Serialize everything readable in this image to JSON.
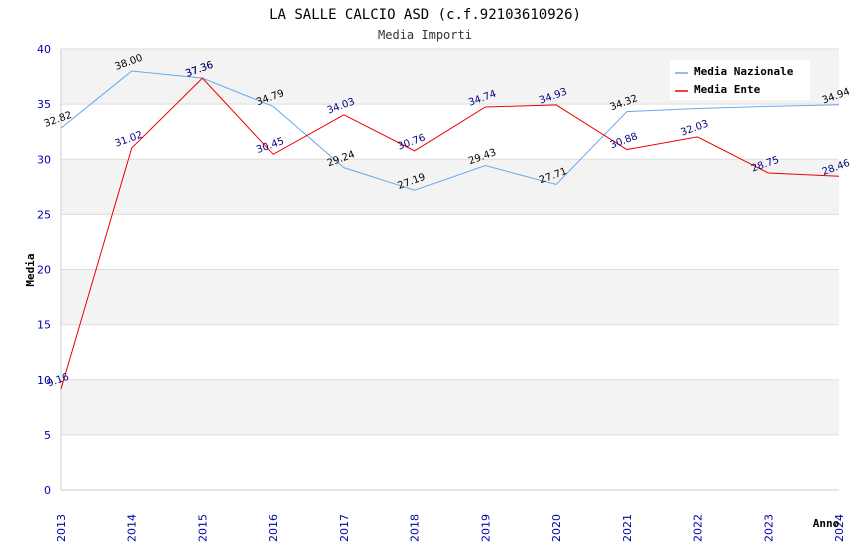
{
  "chart_data": {
    "type": "line",
    "title": "LA SALLE CALCIO ASD (c.f.92103610926)",
    "subtitle": "Media Importi",
    "xlabel": "Anno",
    "ylabel": "Media",
    "ylim": [
      0,
      40
    ],
    "yticks": [
      "0",
      "5",
      "10",
      "15",
      "20",
      "25",
      "30",
      "35",
      "40"
    ],
    "grid": true,
    "legend_position": "top-right",
    "categories": [
      "2013",
      "2014",
      "2015",
      "2016",
      "2017",
      "2018",
      "2019",
      "2020",
      "2021",
      "2022",
      "2023",
      "2024"
    ],
    "series": [
      {
        "name": "Media Nazionale",
        "color": "#66aaee",
        "label_color": "#000000",
        "values": [
          32.82,
          38.0,
          37.36,
          34.79,
          29.24,
          27.19,
          29.43,
          27.71,
          34.32,
          34.6,
          34.8,
          34.94
        ],
        "labels": [
          "32.82",
          "38.00",
          "37.36",
          "34.79",
          "29.24",
          "27.19",
          "29.43",
          "27.71",
          "34.32",
          "",
          "",
          "34.94"
        ]
      },
      {
        "name": "Media Ente",
        "color": "#ee0000",
        "label_color": "#000080",
        "values": [
          9.16,
          31.02,
          37.36,
          30.45,
          34.03,
          30.76,
          34.74,
          34.93,
          30.88,
          32.03,
          28.75,
          28.46
        ],
        "labels": [
          "9.16",
          "31.02",
          "37.36",
          "30.45",
          "34.03",
          "30.76",
          "34.74",
          "34.93",
          "30.88",
          "32.03",
          "28.75",
          "28.46"
        ]
      }
    ]
  }
}
